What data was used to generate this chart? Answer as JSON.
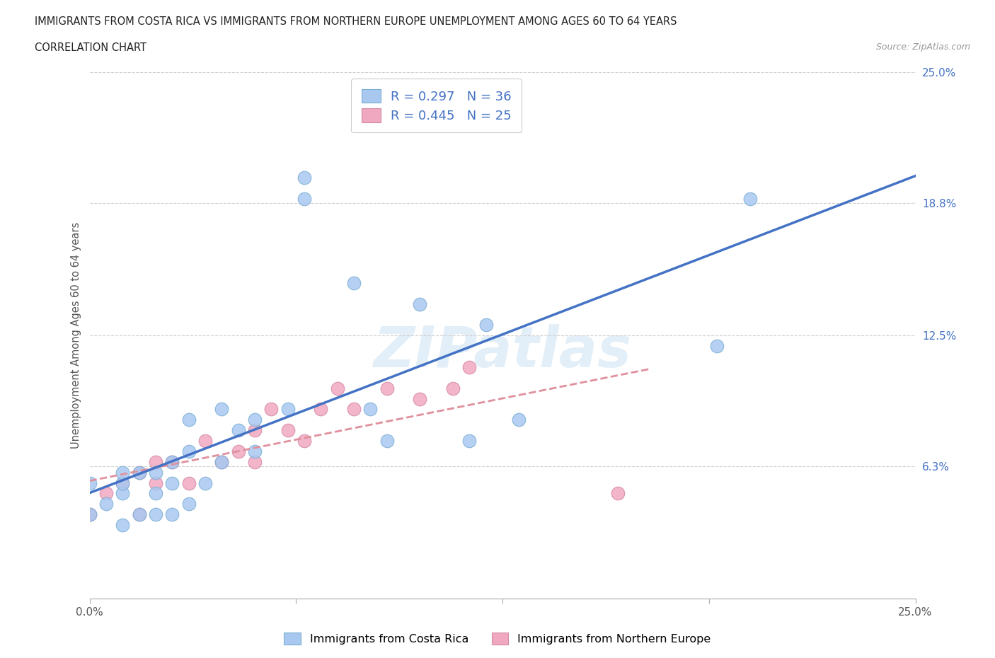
{
  "title_line1": "IMMIGRANTS FROM COSTA RICA VS IMMIGRANTS FROM NORTHERN EUROPE UNEMPLOYMENT AMONG AGES 60 TO 64 YEARS",
  "title_line2": "CORRELATION CHART",
  "source_text": "Source: ZipAtlas.com",
  "ylabel": "Unemployment Among Ages 60 to 64 years",
  "xlim": [
    0.0,
    0.25
  ],
  "ylim": [
    0.0,
    0.25
  ],
  "y_tick_labels_right": [
    "25.0%",
    "18.8%",
    "12.5%",
    "6.3%"
  ],
  "y_tick_positions_right": [
    0.25,
    0.188,
    0.125,
    0.063
  ],
  "watermark": "ZIPatlas",
  "legend_label1": "Immigrants from Costa Rica",
  "legend_label2": "Immigrants from Northern Europe",
  "legend_R1": "R = 0.297",
  "legend_N1": "N = 36",
  "legend_R2": "R = 0.445",
  "legend_N2": "N = 25",
  "color1": "#a8c8f0",
  "color2": "#f0a8c0",
  "line_color1": "#4472c4",
  "line_color_ne": "#c87090",
  "line_color_ne_dashed": "#d4a0b8",
  "background_color": "#ffffff",
  "costa_rica_x": [
    0.0,
    0.0,
    0.005,
    0.01,
    0.01,
    0.01,
    0.01,
    0.015,
    0.015,
    0.02,
    0.02,
    0.02,
    0.025,
    0.025,
    0.025,
    0.03,
    0.03,
    0.03,
    0.035,
    0.04,
    0.04,
    0.045,
    0.05,
    0.05,
    0.06,
    0.065,
    0.065,
    0.08,
    0.085,
    0.09,
    0.1,
    0.115,
    0.12,
    0.13,
    0.19,
    0.2
  ],
  "costa_rica_y": [
    0.04,
    0.055,
    0.045,
    0.035,
    0.05,
    0.055,
    0.06,
    0.04,
    0.06,
    0.04,
    0.05,
    0.06,
    0.04,
    0.055,
    0.065,
    0.045,
    0.07,
    0.085,
    0.055,
    0.065,
    0.09,
    0.08,
    0.07,
    0.085,
    0.09,
    0.19,
    0.2,
    0.15,
    0.09,
    0.075,
    0.14,
    0.075,
    0.13,
    0.085,
    0.12,
    0.19
  ],
  "northern_europe_x": [
    0.0,
    0.005,
    0.01,
    0.015,
    0.015,
    0.02,
    0.02,
    0.025,
    0.03,
    0.035,
    0.04,
    0.045,
    0.05,
    0.05,
    0.055,
    0.06,
    0.065,
    0.07,
    0.075,
    0.08,
    0.09,
    0.1,
    0.11,
    0.115,
    0.16
  ],
  "northern_europe_y": [
    0.04,
    0.05,
    0.055,
    0.04,
    0.06,
    0.055,
    0.065,
    0.065,
    0.055,
    0.075,
    0.065,
    0.07,
    0.065,
    0.08,
    0.09,
    0.08,
    0.075,
    0.09,
    0.1,
    0.09,
    0.1,
    0.095,
    0.1,
    0.11,
    0.05
  ]
}
